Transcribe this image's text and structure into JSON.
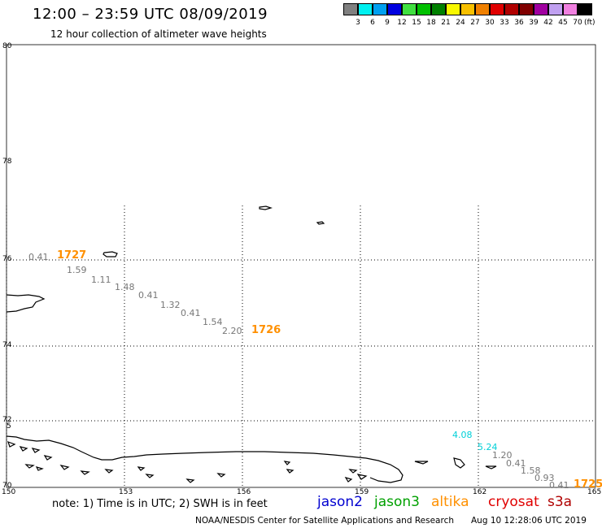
{
  "header": {
    "title": "12:00 – 23:59 UTC 08/09/2019",
    "subtitle": "12 hour collection of altimeter wave heights"
  },
  "legend": {
    "colors": [
      "#808080",
      "#00f0f0",
      "#00a0f0",
      "#0000e0",
      "#40e040",
      "#00c000",
      "#008000",
      "#f8f800",
      "#f8c000",
      "#f08000",
      "#e00000",
      "#b00000",
      "#800000",
      "#a000a0",
      "#c0a0f0",
      "#f080e0",
      "#000000"
    ],
    "levels": [
      "3",
      "6",
      "9",
      "12",
      "15",
      "18",
      "21",
      "24",
      "27",
      "30",
      "33",
      "36",
      "39",
      "42",
      "45",
      "70"
    ],
    "unit": "(ft)"
  },
  "axes": {
    "lat_labels": [
      "80",
      "78",
      "76",
      "74",
      "72",
      "70"
    ],
    "lon_labels": [
      "150",
      "153",
      "156",
      "159",
      "162",
      "165"
    ],
    "edge_marker": "5"
  },
  "tracks": [
    {
      "time_label": "1727",
      "end_time_label": "1726",
      "swh": [
        "0.41",
        "1.59",
        "1.11",
        "1.48",
        "0.41",
        "1.32",
        "0.41",
        "1.54",
        "2.20"
      ]
    },
    {
      "time_label": "1725",
      "swh": [
        "4.08",
        "5.24",
        "1.20",
        "0.41",
        "1.58",
        "0.93",
        "0.41"
      ]
    }
  ],
  "footer": {
    "note": "note:  1) Time is in UTC;  2) SWH is in feet",
    "satellites": [
      {
        "name": "jason2",
        "color": "#0000d0"
      },
      {
        "name": "jason3",
        "color": "#00a000"
      },
      {
        "name": "altika",
        "color": "#ff9000"
      },
      {
        "name": "cryosat",
        "color": "#e00000"
      },
      {
        "name": "s3a",
        "color": "#b00000"
      }
    ],
    "credit": "NOAA/NESDIS Center for Satellite Applications and Research",
    "timestamp": "Aug 10 12:28:06 UTC 2019"
  }
}
